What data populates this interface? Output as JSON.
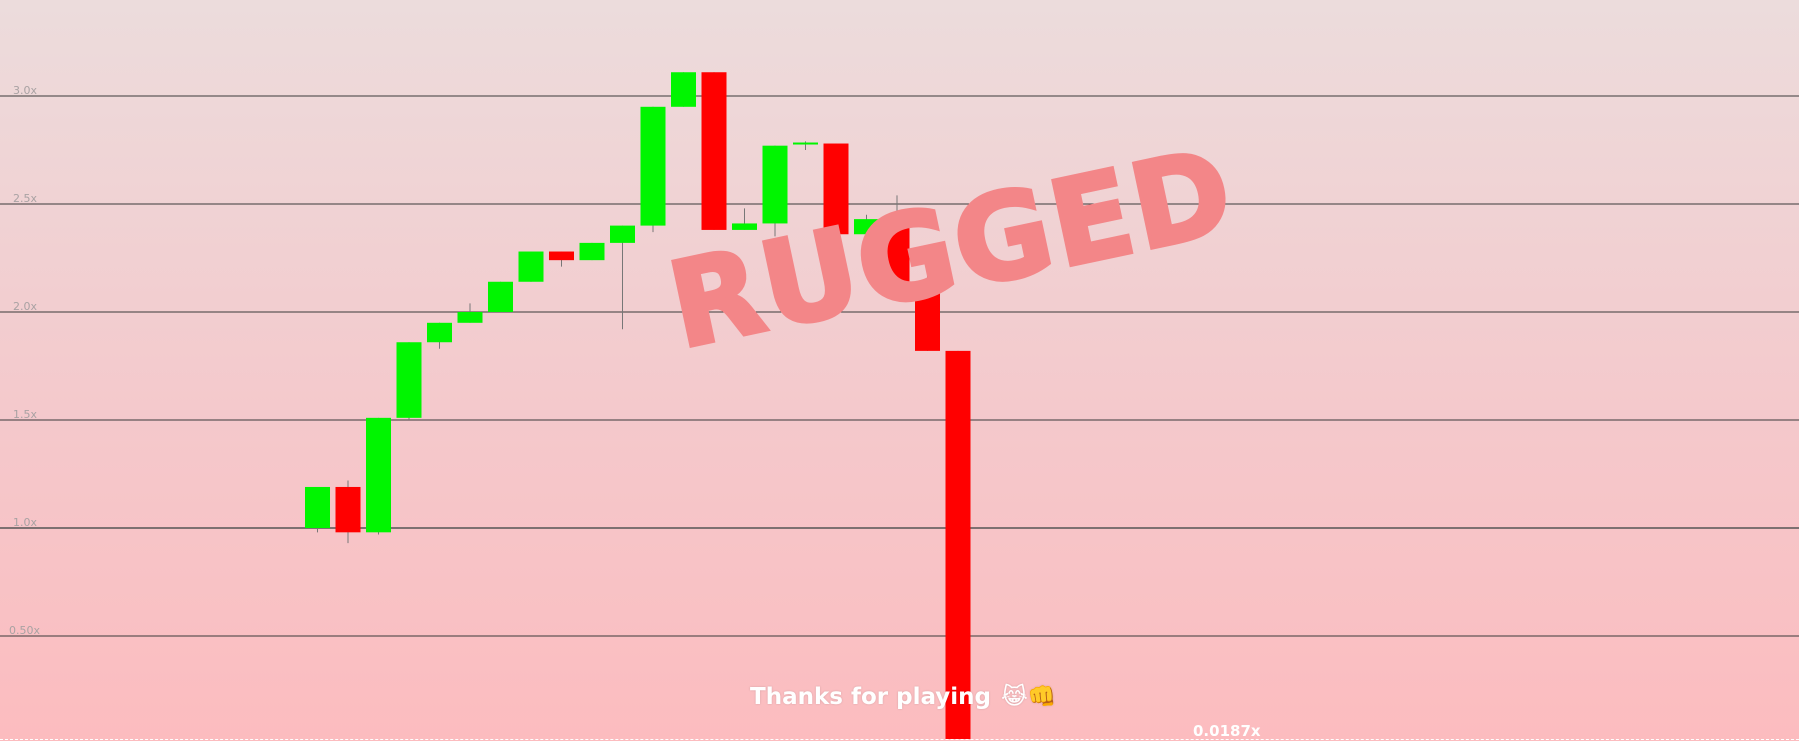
{
  "overlay": {
    "status_text": "RUGGED",
    "message": "Thanks for playing",
    "message_emojis": "😹👊",
    "current_multiplier": "0.0187x"
  },
  "colors": {
    "up": "#00f500",
    "down": "#ff0000",
    "wick": "#777777",
    "status_text": "#f38688",
    "background_top": "#ecdcdc",
    "background_bottom": "#fcbcbf"
  },
  "chart_data": {
    "type": "candlestick",
    "title": "",
    "xlabel": "",
    "ylabel": "",
    "y_axis_labels": [
      {
        "value": 3.0,
        "label": "3.0x"
      },
      {
        "value": 2.5,
        "label": "2.5x"
      },
      {
        "value": 2.0,
        "label": "2.0x"
      },
      {
        "value": 1.5,
        "label": "1.5x"
      },
      {
        "value": 1.0,
        "label": "1.0x"
      },
      {
        "value": 0.5,
        "label": "0.50x"
      }
    ],
    "ylim": [
      0.0,
      3.4
    ],
    "grid": true,
    "candles": [
      {
        "open": 1.0,
        "close": 1.19,
        "high": 1.19,
        "low": 0.98
      },
      {
        "open": 1.19,
        "close": 0.98,
        "high": 1.22,
        "low": 0.93
      },
      {
        "open": 0.98,
        "close": 1.51,
        "high": 1.51,
        "low": 0.97
      },
      {
        "open": 1.51,
        "close": 1.86,
        "high": 1.86,
        "low": 1.5
      },
      {
        "open": 1.86,
        "close": 1.95,
        "high": 1.95,
        "low": 1.83
      },
      {
        "open": 1.95,
        "close": 2.0,
        "high": 2.04,
        "low": 1.95
      },
      {
        "open": 2.0,
        "close": 2.14,
        "high": 2.14,
        "low": 2.0
      },
      {
        "open": 2.14,
        "close": 2.28,
        "high": 2.28,
        "low": 2.14
      },
      {
        "open": 2.28,
        "close": 2.24,
        "high": 2.28,
        "low": 2.21
      },
      {
        "open": 2.24,
        "close": 2.32,
        "high": 2.32,
        "low": 2.24
      },
      {
        "open": 2.32,
        "close": 2.4,
        "high": 2.4,
        "low": 1.92
      },
      {
        "open": 2.4,
        "close": 2.95,
        "high": 2.95,
        "low": 2.37
      },
      {
        "open": 2.95,
        "close": 3.11,
        "high": 3.11,
        "low": 2.95
      },
      {
        "open": 3.11,
        "close": 2.38,
        "high": 3.11,
        "low": 2.38
      },
      {
        "open": 2.38,
        "close": 2.41,
        "high": 2.48,
        "low": 2.38
      },
      {
        "open": 2.41,
        "close": 2.77,
        "high": 2.77,
        "low": 2.35
      },
      {
        "open": 2.78,
        "close": 2.78,
        "high": 2.79,
        "low": 2.75
      },
      {
        "open": 2.78,
        "close": 2.36,
        "high": 2.78,
        "low": 2.3
      },
      {
        "open": 2.36,
        "close": 2.43,
        "high": 2.45,
        "low": 2.36
      },
      {
        "open": 2.43,
        "close": 2.14,
        "high": 2.54,
        "low": 2.14
      },
      {
        "open": 2.14,
        "close": 1.82,
        "high": 2.2,
        "low": 1.82
      },
      {
        "open": 1.82,
        "close": 0.0187,
        "high": 1.82,
        "low": 0.0187
      }
    ]
  }
}
